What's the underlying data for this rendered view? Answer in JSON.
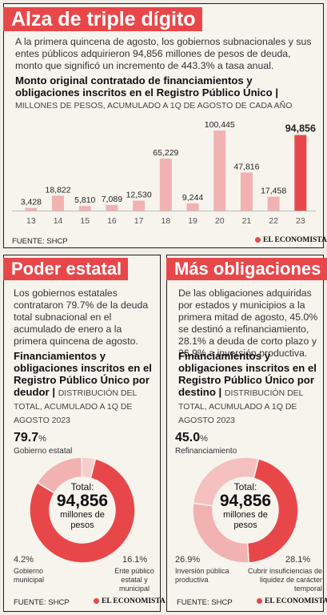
{
  "panel1": {
    "banner": "Alza de triple dígito",
    "lead": "A la primera quincena de agosto, los gobiernos subnacionales y sus entes públicos adquirieron 94,856 millones de pesos de deuda, monto que significó un incremento de 443.3% a tasa anual.",
    "chart_title": "Monto original contratado de financiamientos y obligaciones inscritos en el Registro Público Único |",
    "chart_subtitle": "MILLONES DE PESOS, ACUMULADO A 1Q DE AGOSTO DE CADA AÑO",
    "source": "FUENTE: SHCP",
    "logo": "EL ECONOMISTA"
  },
  "panel2": {
    "banner": "Poder estatal",
    "lead": "Los gobiernos estatales contrataron 79.7% de la deuda total subnacional en el acumulado de enero a la primera quincena de agosto.",
    "chart_title": "Financiamientos y obligaciones inscritos en el Registro Público Único por deudor |",
    "chart_subtitle": "DISTRIBUCIÓN DEL TOTAL, ACUMULADO A 1Q DE AGOSTO 2023",
    "center_label": "Total:",
    "center_value": "94,856",
    "center_unit": "millones de pesos",
    "source": "FUENTE: SHCP",
    "logo": "EL ECONOMISTA"
  },
  "panel3": {
    "banner": "Más obligaciones",
    "lead": "De las obligaciones adquiridas por estados y municipios a la primera mitad de agosto, 45.0% se destinó a refinanciamiento, 28.1% a deuda de corto plazo y 26.9% a inversión productiva.",
    "chart_title": "Financiamientos y obligaciones inscritos en el Registro Público Único por destino |",
    "chart_subtitle": "DISTRIBUCIÓN DEL TOTAL, ACUMULADO A 1Q DE AGOSTO 2023",
    "center_label": "Total:",
    "center_value": "94,856",
    "center_unit": "millones de pesos",
    "source": "FUENTE: SHCP",
    "logo": "EL ECONOMISTA"
  },
  "colors": {
    "accent": "#e8474a",
    "light": "#f2b2b2"
  },
  "chart_data": [
    {
      "type": "bar",
      "categories": [
        "13",
        "14",
        "15",
        "16",
        "17",
        "18",
        "19",
        "20",
        "21",
        "22",
        "23"
      ],
      "values": [
        3428,
        18822,
        5810,
        7089,
        12530,
        65229,
        9244,
        100445,
        47816,
        17458,
        94856
      ],
      "value_labels": [
        "3,428",
        "18,822",
        "5,810",
        "7,089",
        "12,530",
        "65,229",
        "9,244",
        "100,445",
        "47,816",
        "17,458",
        "94,856"
      ],
      "ylim": [
        0,
        105000
      ],
      "highlight_index": 10
    },
    {
      "type": "pie",
      "labels": [
        "Gobierno estatal",
        "Ente público estatal y municipal",
        "Gobierno municipal"
      ],
      "values": [
        79.7,
        16.1,
        4.2
      ],
      "display": [
        "79.7",
        "16.1",
        "4.2"
      ]
    },
    {
      "type": "pie",
      "labels": [
        "Refinanciamiento",
        "Cubrir insuficiencias de liquidez de carácter temporal",
        "Inversión pública productiva"
      ],
      "values": [
        45.0,
        28.1,
        26.9
      ],
      "display": [
        "45.0",
        "28.1",
        "26.9"
      ]
    }
  ]
}
